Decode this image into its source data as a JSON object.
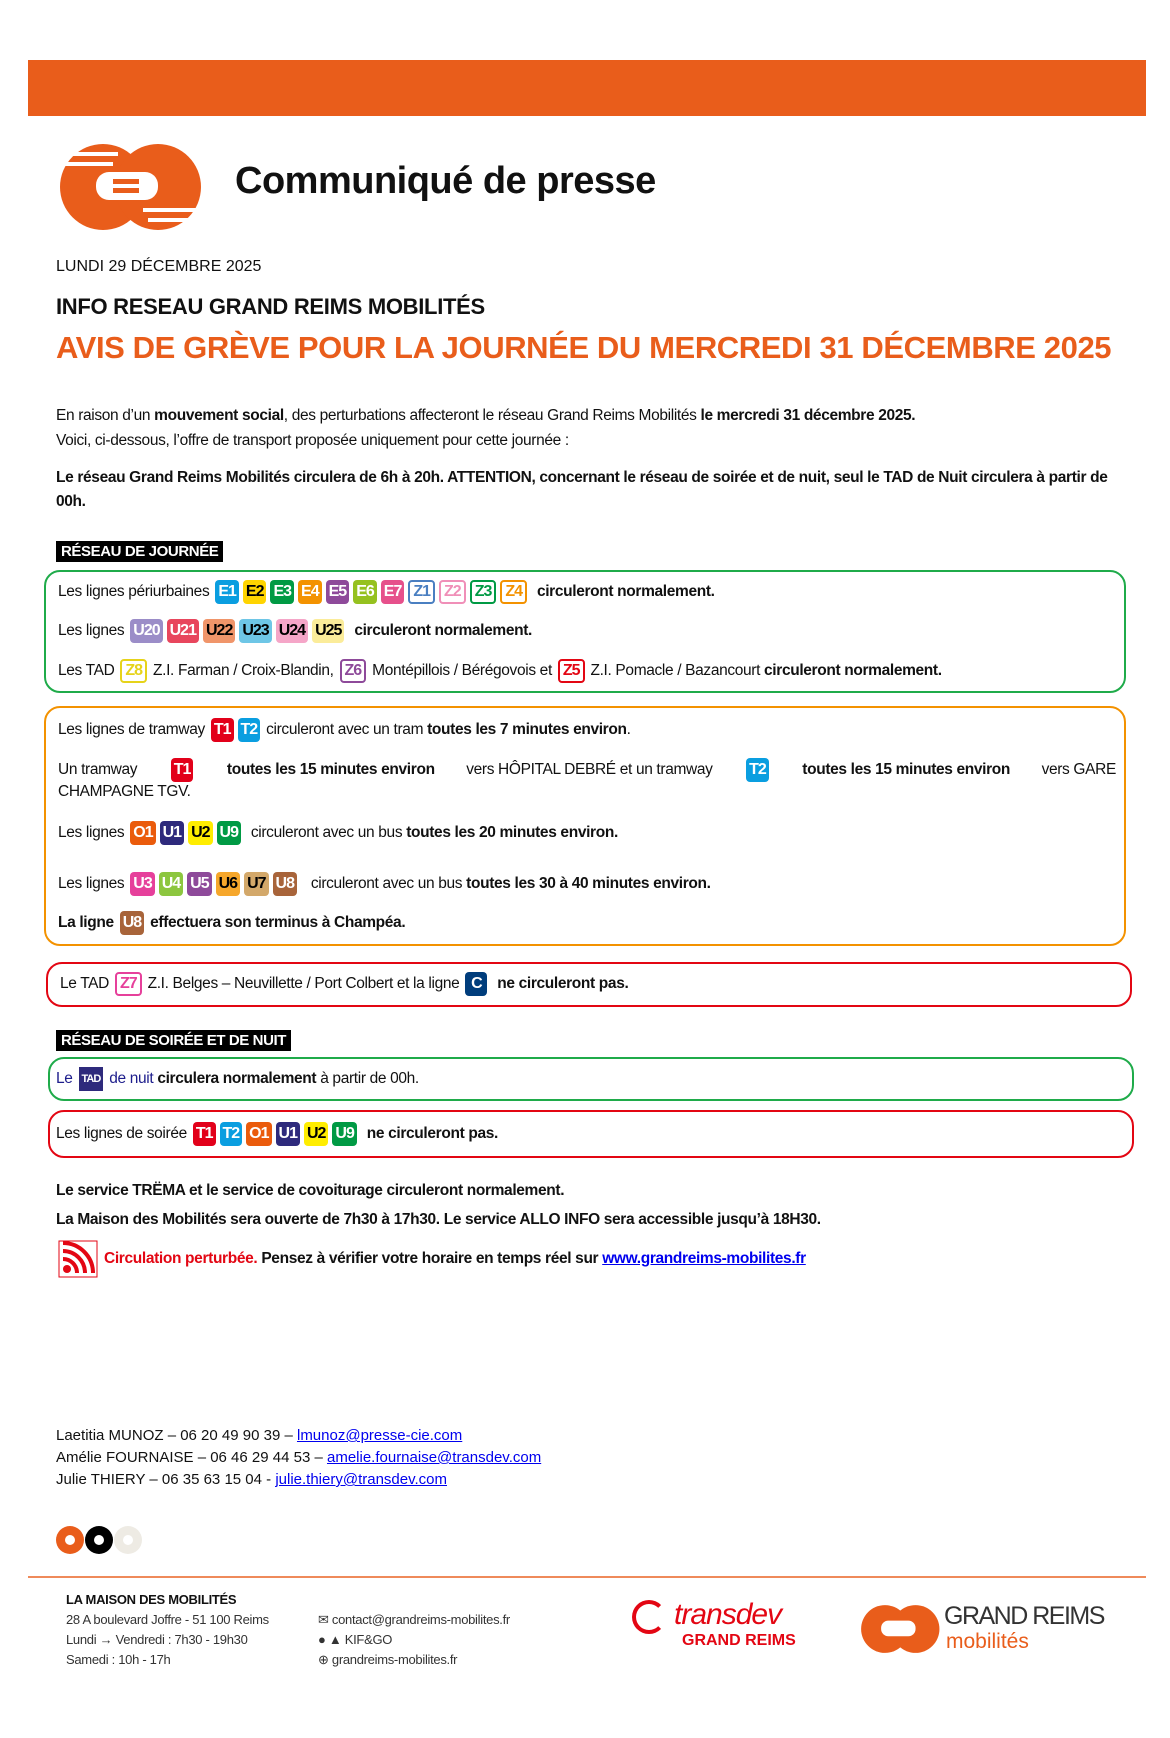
{
  "colors": {
    "brand": "#e95d1b",
    "green_box": "#1fab4a",
    "orange_box": "#f39200",
    "red_box": "#e30613"
  },
  "header": {
    "title": "Communiqué de presse",
    "date": "LUNDI 29 DÉCEMBRE 2025",
    "subtitle": "INFO RESEAU GRAND REIMS MOBILITÉS",
    "headline": "AVIS DE GRÈVE POUR LA JOURNÉE DU MERCREDI 31 DÉCEMBRE 2025"
  },
  "badges": {
    "E1": {
      "bg": "#0a9ee0",
      "fg": "#fff"
    },
    "E2": {
      "bg": "#ffd400",
      "fg": "#000"
    },
    "E3": {
      "bg": "#009a44",
      "fg": "#fff"
    },
    "E4": {
      "bg": "#f39200",
      "fg": "#fff"
    },
    "E5": {
      "bg": "#8e4a9a",
      "fg": "#fff"
    },
    "E6": {
      "bg": "#95c11f",
      "fg": "#fff"
    },
    "E7": {
      "bg": "#e6508b",
      "fg": "#fff"
    },
    "Z1": {
      "outline": "#4a7fc1"
    },
    "Z2": {
      "outline": "#f08fb8"
    },
    "Z3": {
      "outline": "#009a44"
    },
    "Z4": {
      "outline": "#f39200"
    },
    "Z8": {
      "outline": "#e6d31a"
    },
    "Z6": {
      "outline": "#8e4a9a"
    },
    "Z5": {
      "outline": "#e30613"
    },
    "Z7": {
      "outline": "#e6409b"
    },
    "U20": {
      "bg": "#9b8dc8",
      "fg": "#fff"
    },
    "U21": {
      "bg": "#e8465d",
      "fg": "#fff"
    },
    "U22": {
      "bg": "#f0956a",
      "fg": "#000"
    },
    "U23": {
      "bg": "#6ec6e6",
      "fg": "#000"
    },
    "U24": {
      "bg": "#f5a6c8",
      "fg": "#000"
    },
    "U25": {
      "bg": "#fbec9a",
      "fg": "#000"
    },
    "T1": {
      "bg": "#e2001a",
      "fg": "#fff"
    },
    "T2": {
      "bg": "#0a9ee0",
      "fg": "#fff"
    },
    "O1": {
      "bg": "#ea5b0c",
      "fg": "#fff"
    },
    "U1": {
      "bg": "#2e2a7c",
      "fg": "#fff"
    },
    "U2": {
      "bg": "#ffed00",
      "fg": "#000"
    },
    "U9": {
      "bg": "#009a44",
      "fg": "#fff"
    },
    "U3": {
      "bg": "#e6409b",
      "fg": "#fff"
    },
    "U4": {
      "bg": "#8cc63f",
      "fg": "#fff"
    },
    "U5": {
      "bg": "#8e4a9a",
      "fg": "#fff"
    },
    "U6": {
      "bg": "#f6a72b",
      "fg": "#000"
    },
    "U7": {
      "bg": "#d3a86a",
      "fg": "#000"
    },
    "U8": {
      "bg": "#a8643a",
      "fg": "#fff"
    },
    "C": {
      "bg": "#003d7c",
      "fg": "#fff"
    },
    "TAD": {
      "bg": "#2e2a7c",
      "fg": "#fff"
    }
  },
  "intro": {
    "p1": [
      {
        "t": "En raison d’un "
      },
      {
        "t": "mouvement social",
        "b": 1
      },
      {
        "t": ", des perturbations affecteront le réseau Grand Reims Mobilités "
      },
      {
        "t": "le mercredi 31 décembre 2025.",
        "b": 1
      }
    ],
    "p2": "Voici, ci-dessous, l’offre de transport proposée uniquement pour cette journée :",
    "p3": "Le réseau Grand Reims Mobilités circulera de 6h à 20h. ATTENTION, concernant le réseau de soirée et de nuit, seul le TAD de Nuit circulera à partir de 00h."
  },
  "day_network": {
    "label": "RÉSEAU DE JOURNÉE",
    "green": [
      [
        {
          "t": "Les lignes périurbaines "
        },
        {
          "badge": "E1"
        },
        {
          "badge": "E2"
        },
        {
          "badge": "E3"
        },
        {
          "badge": "E4"
        },
        {
          "badge": "E5"
        },
        {
          "badge": "E6"
        },
        {
          "badge": "E7"
        },
        {
          "badge": "Z1"
        },
        {
          "badge": "Z2"
        },
        {
          "badge": "Z3"
        },
        {
          "badge": "Z4"
        },
        {
          "t": "  circuleront normalement.",
          "b": 1
        }
      ],
      [
        {
          "t": "Les lignes "
        },
        {
          "badge": "U20"
        },
        {
          "badge": "U21"
        },
        {
          "badge": "U22"
        },
        {
          "badge": "U23"
        },
        {
          "badge": "U24"
        },
        {
          "badge": "U25"
        },
        {
          "t": "  circuleront normalement.",
          "b": 1
        }
      ],
      [
        {
          "t": "Les TAD "
        },
        {
          "badge": "Z8"
        },
        {
          "t": " Z.I. Farman / Croix-Blandin, "
        },
        {
          "badge": "Z6"
        },
        {
          "t": " Montépillois / Bérégovois et "
        },
        {
          "badge": "Z5"
        },
        {
          "t": " Z.I. Pomacle / Bazancourt "
        },
        {
          "t": "circuleront normalement.",
          "b": 1
        }
      ]
    ],
    "orange": [
      [
        {
          "t": "Les lignes de tramway "
        },
        {
          "badge": "T1"
        },
        {
          "badge": "T2"
        },
        {
          "t": " circuleront avec un tram "
        },
        {
          "t": "toutes les 7 minutes environ",
          "b": 1
        },
        {
          "t": "."
        }
      ],
      [
        {
          "t": "Un tramway "
        },
        {
          "badge": "T1"
        },
        {
          "t": " toutes les 15 minutes environ",
          "b": 1
        },
        {
          "t": " vers HÔPITAL DEBRÉ et un tramway "
        },
        {
          "badge": "T2"
        },
        {
          "t": " toutes les 15 minutes environ",
          "b": 1
        },
        {
          "t": " vers GARE"
        }
      ],
      [
        {
          "t": "CHAMPAGNE TGV."
        }
      ],
      [
        {
          "t": "Les lignes "
        },
        {
          "badge": "O1"
        },
        {
          "badge": "U1"
        },
        {
          "badge": "U2"
        },
        {
          "badge": "U9"
        },
        {
          "t": "  circuleront avec un bus "
        },
        {
          "t": "toutes les 20 minutes environ.",
          "b": 1
        }
      ],
      [
        {
          "t": "Les lignes "
        },
        {
          "badge": "U3"
        },
        {
          "badge": "U4"
        },
        {
          "badge": "U5"
        },
        {
          "badge": "U6"
        },
        {
          "badge": "U7"
        },
        {
          "badge": "U8"
        },
        {
          "t": "   circuleront avec un bus "
        },
        {
          "t": "toutes les 30 à 40 minutes environ.",
          "b": 1
        }
      ],
      [
        {
          "t": "La ligne ",
          "b": 1
        },
        {
          "badge": "U8"
        },
        {
          "t": " effectuera son terminus à Champéa.",
          "b": 1
        }
      ]
    ],
    "red": [
      [
        {
          "t": "Le TAD "
        },
        {
          "badge": "Z7"
        },
        {
          "t": " Z.I. Belges – Neuvillette / Port Colbert et la ligne "
        },
        {
          "badge": "C"
        },
        {
          "t": "  ne circuleront pas.",
          "b": 1
        }
      ]
    ]
  },
  "night_network": {
    "label": "RÉSEAU DE SOIRÉE ET DE NUIT",
    "green": [
      [
        {
          "t": "Le ",
          "c": "#1d1d8c"
        },
        {
          "badge": "TAD"
        },
        {
          "t": " de nuit ",
          "c": "#1d1d8c"
        },
        {
          "t": "circulera normalement",
          "b": 1
        },
        {
          "t": " à partir de 00h."
        }
      ]
    ],
    "red": [
      [
        {
          "t": "Les lignes de soirée "
        },
        {
          "badge": "T1"
        },
        {
          "badge": "T2"
        },
        {
          "badge": "O1"
        },
        {
          "badge": "U1"
        },
        {
          "badge": "U2"
        },
        {
          "badge": "U9"
        },
        {
          "t": "  ne circuleront pas.",
          "b": 1
        }
      ]
    ]
  },
  "notes": {
    "trema": "Le service TRËMA et le service de covoiturage circuleront normalement.",
    "maison": "La Maison des Mobilités sera ouverte de 7h30 à 17h30. Le service ALLO INFO sera accessible jusqu’à 18H30.",
    "alert_red": "Circulation perturbée.",
    "alert_text": " Pensez à vérifier votre horaire en temps réel sur ",
    "alert_link": "www.grandreims-mobilites.fr"
  },
  "contacts": [
    {
      "text": "Laetitia MUNOZ – 06 20 49 90 39 – ",
      "email": "lmunoz@presse-cie.com"
    },
    {
      "text": "Amélie FOURNAISE – 06 46 29 44 53 – ",
      "email": "amelie.fournaise@transdev.com"
    },
    {
      "text": "Julie THIERY – 06 35 63 15 04 - ",
      "email": "julie.thiery@transdev.com"
    }
  ],
  "footer": {
    "title": "LA MAISON DES MOBILITÉS",
    "address": "28 A boulevard Joffre - 51 100 Reims",
    "hours_week": "Lundi → Vendredi : 7h30 - 19h30",
    "hours_sat": "Samedi : 10h - 17h",
    "email": "contact@grandreims-mobilites.fr",
    "app": "KIF&GO",
    "website": "grandreims-mobilites.fr",
    "transdev_logo": "transdev",
    "transdev_sub": "GRAND REIMS",
    "gr_logo": "GRAND REIMS",
    "gr_sub": "mobilités"
  }
}
